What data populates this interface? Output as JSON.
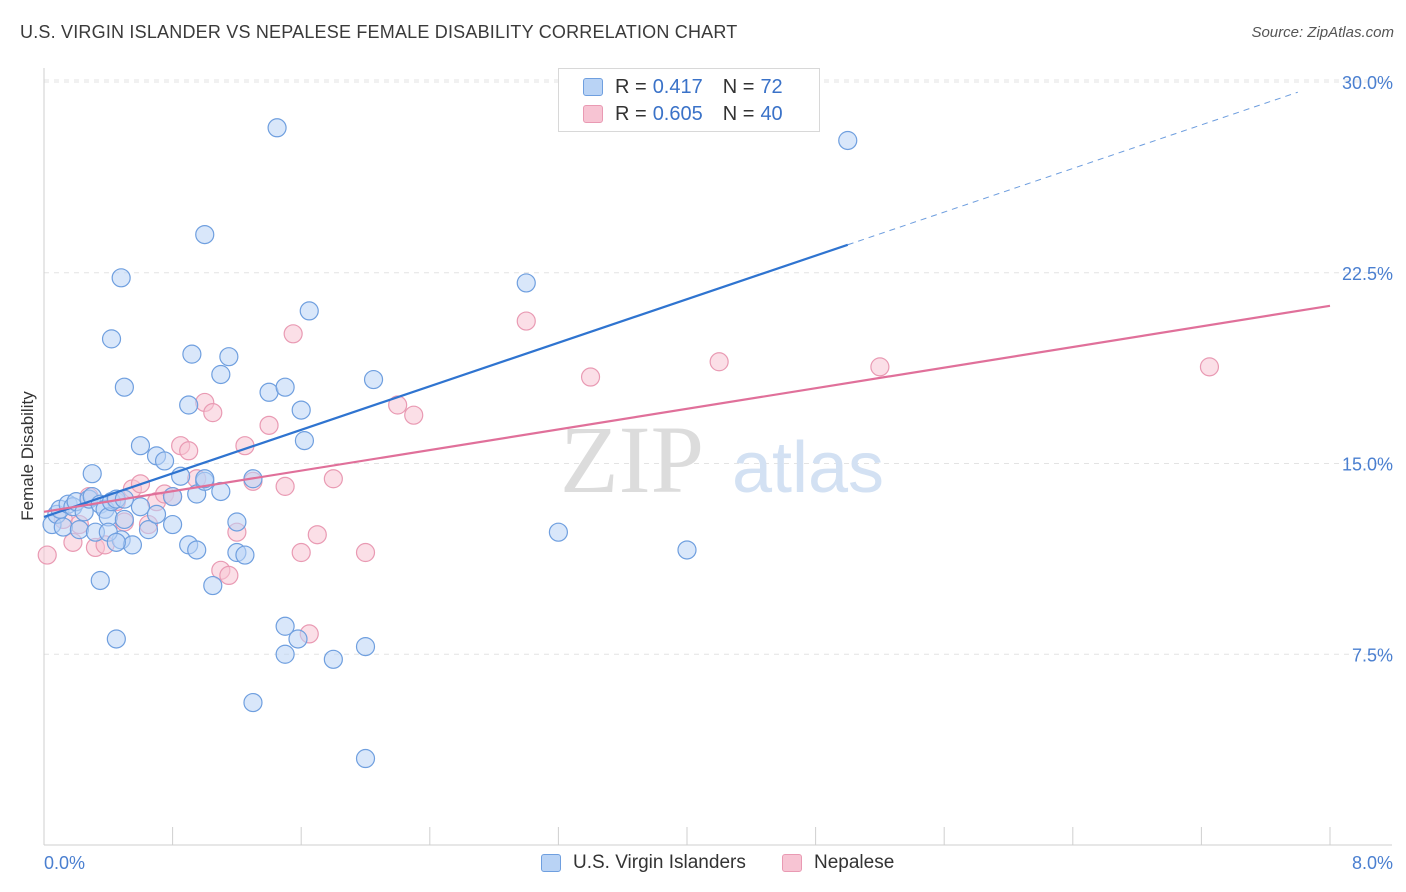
{
  "header": {
    "title": "U.S. VIRGIN ISLANDER VS NEPALESE FEMALE DISABILITY CORRELATION CHART",
    "source": "Source: ZipAtlas.com"
  },
  "watermark": {
    "zip": "ZIP",
    "atlas": "atlas"
  },
  "legend_stats": [
    {
      "r_label": "R =",
      "r_value": "0.417",
      "n_label": "N =",
      "n_value": "72"
    },
    {
      "r_label": "R =",
      "r_value": "0.605",
      "n_label": "N =",
      "n_value": "40"
    }
  ],
  "colors": {
    "blue_fill": "#b9d3f5",
    "blue_stroke": "#6f9fdf",
    "blue_line": "#2f74d0",
    "pink_fill": "#f7c4d3",
    "pink_stroke": "#e99ab3",
    "pink_line": "#e0709a",
    "axis_text": "#4a7fd0",
    "grid": "#e3e3e3"
  },
  "chart_data": {
    "type": "scatter",
    "title": "U.S. VIRGIN ISLANDER VS NEPALESE FEMALE DISABILITY CORRELATION CHART",
    "xlabel": "",
    "ylabel": "Female Disability",
    "xlim": [
      0,
      8.0
    ],
    "ylim": [
      0,
      30.0
    ],
    "x_tick_labels": [
      "0.0%",
      "8.0%"
    ],
    "y_ticks": [
      7.5,
      15.0,
      22.5,
      30.0
    ],
    "y_tick_labels": [
      "7.5%",
      "15.0%",
      "22.5%",
      "30.0%"
    ],
    "grid": true,
    "legend_position": "bottom",
    "series": [
      {
        "name": "U.S. Virgin Islanders",
        "color": "#6f9fdf",
        "r": 0.417,
        "n": 72,
        "trend": {
          "x0": 0.0,
          "y0": 12.9,
          "x1": 5.0,
          "y1": 23.6,
          "dash_x1": 7.8,
          "dash_y1": 29.6
        },
        "points": [
          [
            0.05,
            12.6
          ],
          [
            0.08,
            13.0
          ],
          [
            0.1,
            13.2
          ],
          [
            0.12,
            12.5
          ],
          [
            0.15,
            13.4
          ],
          [
            0.18,
            13.3
          ],
          [
            0.2,
            13.5
          ],
          [
            0.22,
            12.4
          ],
          [
            0.25,
            13.1
          ],
          [
            0.28,
            13.6
          ],
          [
            0.3,
            13.7
          ],
          [
            0.32,
            12.3
          ],
          [
            0.35,
            13.4
          ],
          [
            0.38,
            13.2
          ],
          [
            0.4,
            12.9
          ],
          [
            0.42,
            13.5
          ],
          [
            0.45,
            13.6
          ],
          [
            0.48,
            12.0
          ],
          [
            0.5,
            12.8
          ],
          [
            0.55,
            11.8
          ],
          [
            0.6,
            13.3
          ],
          [
            0.65,
            12.4
          ],
          [
            0.7,
            13.0
          ],
          [
            0.8,
            12.6
          ],
          [
            0.85,
            14.5
          ],
          [
            0.9,
            11.8
          ],
          [
            0.95,
            13.8
          ],
          [
            1.0,
            14.3
          ],
          [
            1.1,
            13.9
          ],
          [
            1.2,
            12.7
          ],
          [
            0.3,
            14.6
          ],
          [
            0.35,
            10.4
          ],
          [
            0.4,
            12.3
          ],
          [
            0.45,
            11.9
          ],
          [
            0.5,
            13.6
          ],
          [
            0.6,
            15.7
          ],
          [
            0.7,
            15.3
          ],
          [
            0.75,
            15.1
          ],
          [
            0.8,
            13.7
          ],
          [
            0.9,
            17.3
          ],
          [
            0.92,
            19.3
          ],
          [
            0.95,
            11.6
          ],
          [
            1.0,
            14.4
          ],
          [
            1.05,
            10.2
          ],
          [
            1.1,
            18.5
          ],
          [
            1.15,
            19.2
          ],
          [
            1.2,
            11.5
          ],
          [
            1.25,
            11.4
          ],
          [
            1.3,
            14.4
          ],
          [
            1.4,
            17.8
          ],
          [
            1.5,
            18.0
          ],
          [
            1.6,
            17.1
          ],
          [
            1.62,
            15.9
          ],
          [
            1.5,
            8.6
          ],
          [
            1.58,
            8.1
          ],
          [
            1.5,
            7.5
          ],
          [
            1.3,
            5.6
          ],
          [
            0.45,
            8.1
          ],
          [
            0.48,
            22.3
          ],
          [
            0.42,
            19.9
          ],
          [
            0.5,
            18.0
          ],
          [
            1.45,
            28.2
          ],
          [
            1.0,
            24.0
          ],
          [
            1.65,
            21.0
          ],
          [
            1.8,
            7.3
          ],
          [
            2.0,
            7.8
          ],
          [
            2.0,
            3.4
          ],
          [
            2.05,
            18.3
          ],
          [
            3.0,
            22.1
          ],
          [
            3.2,
            12.3
          ],
          [
            4.0,
            11.6
          ],
          [
            5.0,
            27.7
          ]
        ]
      },
      {
        "name": "Nepalese",
        "color": "#e99ab3",
        "r": 0.605,
        "n": 40,
        "trend": {
          "x0": 0.0,
          "y0": 13.1,
          "x1": 8.0,
          "y1": 21.2
        },
        "points": [
          [
            0.02,
            11.4
          ],
          [
            0.12,
            12.8
          ],
          [
            0.18,
            11.9
          ],
          [
            0.22,
            12.6
          ],
          [
            0.28,
            13.7
          ],
          [
            0.32,
            11.7
          ],
          [
            0.38,
            11.8
          ],
          [
            0.45,
            13.5
          ],
          [
            0.5,
            12.7
          ],
          [
            0.55,
            14.0
          ],
          [
            0.6,
            14.2
          ],
          [
            0.65,
            12.6
          ],
          [
            0.7,
            13.5
          ],
          [
            0.75,
            13.8
          ],
          [
            0.8,
            13.7
          ],
          [
            0.85,
            15.7
          ],
          [
            0.9,
            15.5
          ],
          [
            0.95,
            14.4
          ],
          [
            1.0,
            17.4
          ],
          [
            1.05,
            17.0
          ],
          [
            1.1,
            10.8
          ],
          [
            1.15,
            10.6
          ],
          [
            1.2,
            12.3
          ],
          [
            1.25,
            15.7
          ],
          [
            1.3,
            14.3
          ],
          [
            1.4,
            16.5
          ],
          [
            1.5,
            14.1
          ],
          [
            1.55,
            20.1
          ],
          [
            1.6,
            11.5
          ],
          [
            1.65,
            8.3
          ],
          [
            1.7,
            12.2
          ],
          [
            1.8,
            14.4
          ],
          [
            2.0,
            11.5
          ],
          [
            2.2,
            17.3
          ],
          [
            2.3,
            16.9
          ],
          [
            3.0,
            20.6
          ],
          [
            3.4,
            18.4
          ],
          [
            4.2,
            19.0
          ],
          [
            5.2,
            18.8
          ],
          [
            7.25,
            18.8
          ]
        ]
      }
    ]
  },
  "legend_bottom": [
    {
      "label": "U.S. Virgin Islanders"
    },
    {
      "label": "Nepalese"
    }
  ]
}
